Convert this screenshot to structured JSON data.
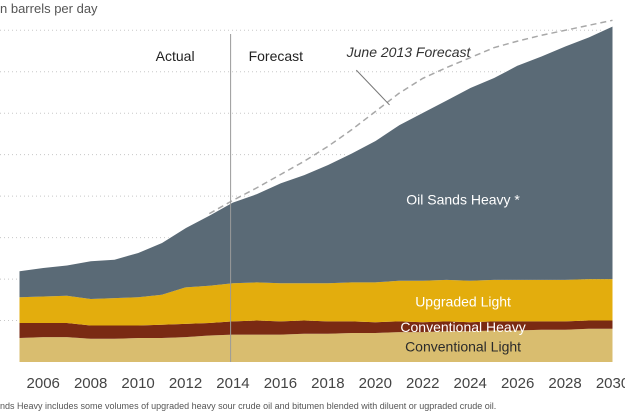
{
  "chart_data": {
    "type": "area",
    "stacked": true,
    "ylabel": "n barrels per day",
    "x": [
      2005,
      2006,
      2007,
      2008,
      2009,
      2010,
      2011,
      2012,
      2013,
      2014,
      2015,
      2016,
      2017,
      2018,
      2019,
      2020,
      2021,
      2022,
      2023,
      2024,
      2025,
      2026,
      2027,
      2028,
      2029,
      2030
    ],
    "x_tick_labels": [
      "2006",
      "2008",
      "2010",
      "2012",
      "2014",
      "2016",
      "2018",
      "2020",
      "2022",
      "2024",
      "2026",
      "2028",
      "2030"
    ],
    "x_tick_values": [
      2006,
      2008,
      2010,
      2012,
      2014,
      2016,
      2018,
      2020,
      2022,
      2024,
      2026,
      2028,
      2030
    ],
    "xlim": [
      2004.6,
      2030.4
    ],
    "ylim": [
      0,
      4.1
    ],
    "grid": "horizontal dotted",
    "series": [
      {
        "name": "Conventional Light",
        "label": "Conventional Light",
        "color": "#d9bd6f",
        "label_color": "#2b2b2b",
        "values": [
          0.29,
          0.3,
          0.3,
          0.28,
          0.28,
          0.29,
          0.29,
          0.3,
          0.32,
          0.33,
          0.33,
          0.33,
          0.34,
          0.34,
          0.35,
          0.35,
          0.36,
          0.36,
          0.37,
          0.37,
          0.38,
          0.38,
          0.39,
          0.39,
          0.4,
          0.4
        ]
      },
      {
        "name": "Conventional Heavy",
        "label": "Conventional Heavy",
        "color": "#7a2a13",
        "label_color": "#ffffff",
        "values": [
          0.18,
          0.17,
          0.17,
          0.16,
          0.16,
          0.15,
          0.16,
          0.16,
          0.15,
          0.16,
          0.17,
          0.16,
          0.16,
          0.15,
          0.14,
          0.13,
          0.13,
          0.12,
          0.12,
          0.11,
          0.11,
          0.11,
          0.1,
          0.1,
          0.1,
          0.1
        ]
      },
      {
        "name": "Upgraded Light",
        "label": "Upgraded Light",
        "color": "#e3ad0d",
        "label_color": "#ffffff",
        "values": [
          0.31,
          0.32,
          0.33,
          0.32,
          0.33,
          0.34,
          0.36,
          0.44,
          0.45,
          0.46,
          0.46,
          0.46,
          0.45,
          0.46,
          0.47,
          0.48,
          0.49,
          0.5,
          0.5,
          0.5,
          0.5,
          0.5,
          0.5,
          0.5,
          0.5,
          0.5
        ]
      },
      {
        "name": "Oil Sands Heavy",
        "label": "Oil Sands Heavy *",
        "color": "#5a6a76",
        "label_color": "#ffffff",
        "values": [
          0.32,
          0.35,
          0.37,
          0.46,
          0.47,
          0.54,
          0.63,
          0.72,
          0.85,
          0.98,
          1.07,
          1.21,
          1.31,
          1.43,
          1.56,
          1.71,
          1.88,
          2.03,
          2.17,
          2.33,
          2.44,
          2.59,
          2.7,
          2.82,
          2.92,
          3.05
        ]
      }
    ],
    "forecast_line": {
      "label": "June 2013 Forecast",
      "x": [
        2013,
        2014,
        2015,
        2016,
        2017,
        2018,
        2019,
        2020,
        2021,
        2022,
        2023,
        2024,
        2025,
        2026,
        2027,
        2028,
        2029,
        2030
      ],
      "values": [
        1.79,
        1.95,
        2.1,
        2.26,
        2.42,
        2.6,
        2.8,
        3.02,
        3.24,
        3.42,
        3.55,
        3.67,
        3.79,
        3.87,
        3.94,
        4.0,
        4.06,
        4.12
      ]
    },
    "divider": {
      "x": 2013.9,
      "left_label": "Actual",
      "right_label": "Forecast"
    },
    "note": "nds Heavy includes some volumes of upgraded heavy sour crude oil and bitumen blended with diluent or ugpraded crude oil."
  }
}
